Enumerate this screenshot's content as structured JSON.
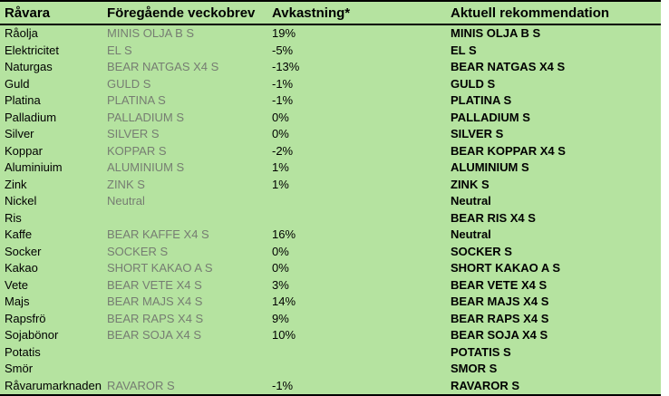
{
  "table": {
    "columns": [
      "Råvara",
      "Föregående veckobrev",
      "Avkastning*",
      "Aktuell rekommendation"
    ],
    "rows": [
      {
        "ravara": "Råolja",
        "foregaende": "MINIS OLJA B S",
        "avkastning": "19%",
        "rekommendation": "MINIS OLJA B S"
      },
      {
        "ravara": "Elektricitet",
        "foregaende": "EL S",
        "avkastning": "-5%",
        "rekommendation": "EL S"
      },
      {
        "ravara": "Naturgas",
        "foregaende": "BEAR NATGAS X4 S",
        "avkastning": "-13%",
        "rekommendation": "BEAR NATGAS X4 S"
      },
      {
        "ravara": "Guld",
        "foregaende": "GULD S",
        "avkastning": "-1%",
        "rekommendation": "GULD S"
      },
      {
        "ravara": "Platina",
        "foregaende": "PLATINA S",
        "avkastning": "-1%",
        "rekommendation": "PLATINA S"
      },
      {
        "ravara": "Palladium",
        "foregaende": "PALLADIUM S",
        "avkastning": "0%",
        "rekommendation": "PALLADIUM S"
      },
      {
        "ravara": "Silver",
        "foregaende": "SILVER S",
        "avkastning": "0%",
        "rekommendation": "SILVER S"
      },
      {
        "ravara": "Koppar",
        "foregaende": "KOPPAR S",
        "avkastning": "-2%",
        "rekommendation": "BEAR KOPPAR X4 S"
      },
      {
        "ravara": "Aluminiuim",
        "foregaende": "ALUMINIUM S",
        "avkastning": "1%",
        "rekommendation": "ALUMINIUM S"
      },
      {
        "ravara": "Zink",
        "foregaende": "ZINK S",
        "avkastning": "1%",
        "rekommendation": "ZINK S"
      },
      {
        "ravara": "Nickel",
        "foregaende": "Neutral",
        "avkastning": "",
        "rekommendation": "Neutral"
      },
      {
        "ravara": "Ris",
        "foregaende": "",
        "avkastning": "",
        "rekommendation": "BEAR RIS X4 S"
      },
      {
        "ravara": "Kaffe",
        "foregaende": "BEAR KAFFE X4 S",
        "avkastning": "16%",
        "rekommendation": "Neutral"
      },
      {
        "ravara": "Socker",
        "foregaende": "SOCKER S",
        "avkastning": "0%",
        "rekommendation": "SOCKER S"
      },
      {
        "ravara": "Kakao",
        "foregaende": "SHORT KAKAO A S",
        "avkastning": "0%",
        "rekommendation": "SHORT KAKAO A S"
      },
      {
        "ravara": "Vete",
        "foregaende": "BEAR VETE X4 S",
        "avkastning": "3%",
        "rekommendation": "BEAR VETE X4 S"
      },
      {
        "ravara": "Majs",
        "foregaende": "BEAR MAJS X4 S",
        "avkastning": "14%",
        "rekommendation": "BEAR MAJS X4 S"
      },
      {
        "ravara": "Rapsfrö",
        "foregaende": "BEAR RAPS X4 S",
        "avkastning": "9%",
        "rekommendation": "BEAR RAPS X4 S"
      },
      {
        "ravara": "Sojabönor",
        "foregaende": "BEAR SOJA X4 S",
        "avkastning": "10%",
        "rekommendation": "BEAR SOJA X4 S"
      },
      {
        "ravara": "Potatis",
        "foregaende": "",
        "avkastning": "",
        "rekommendation": "POTATIS S"
      },
      {
        "ravara": "Smör",
        "foregaende": "",
        "avkastning": "",
        "rekommendation": "SMOR S"
      },
      {
        "ravara": "Råvarumarknaden",
        "foregaende": "RAVAROR S",
        "avkastning": "-1%",
        "rekommendation": "RAVAROR S"
      }
    ],
    "colors": {
      "background": "#b5e3a0",
      "border": "#000000",
      "text": "#000000",
      "muted_text": "#767d72"
    }
  }
}
